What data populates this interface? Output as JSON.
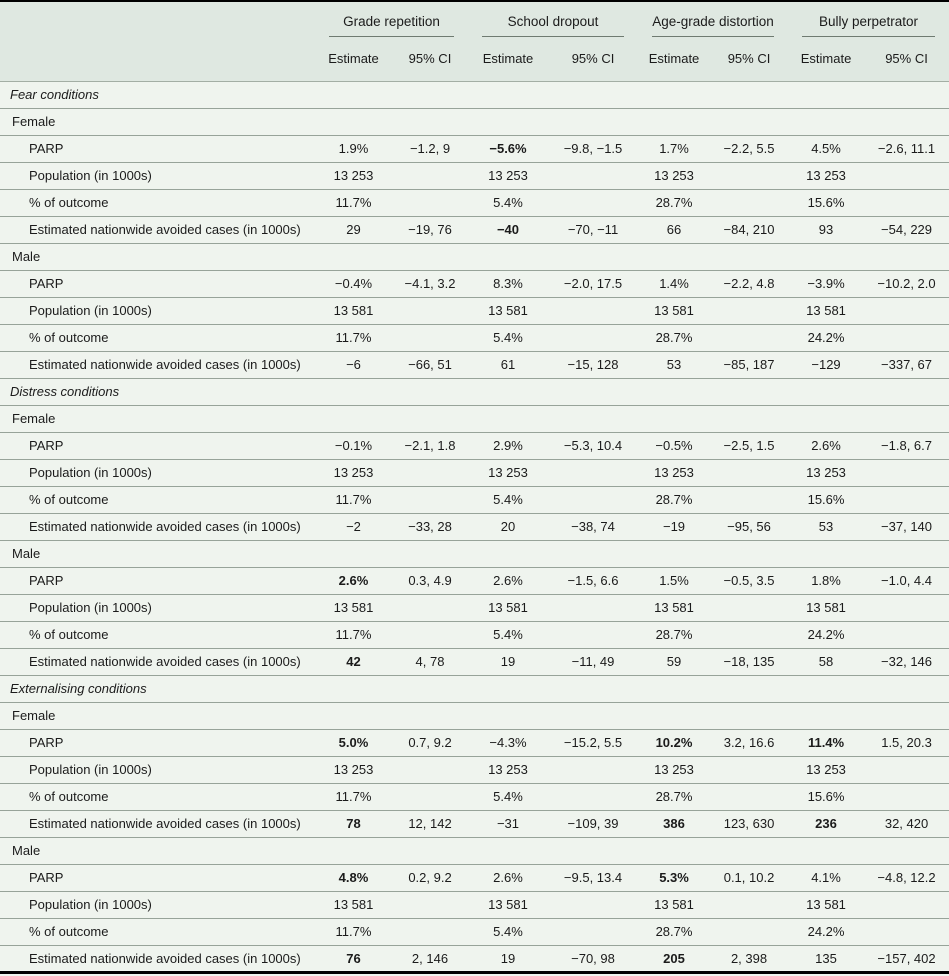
{
  "accent_colors": {
    "header_background": "#dfe8e1",
    "body_background": "#eff4ee",
    "rule_color": "#000000",
    "separator_color": "#97a399"
  },
  "table": {
    "column_groups": [
      {
        "label": "Grade repetition"
      },
      {
        "label": "School dropout"
      },
      {
        "label": "Age-grade distortion"
      },
      {
        "label": "Bully perpetrator"
      }
    ],
    "sub_headers": {
      "estimate": "Estimate",
      "ci": "95% CI"
    },
    "sections": [
      {
        "label": "Fear conditions",
        "groups": [
          {
            "label": "Female",
            "rows": [
              {
                "label": "PARP",
                "cells": [
                  "1.9%",
                  "−1.2, 9",
                  "−5.6%",
                  "−9.8, −1.5",
                  "1.7%",
                  "−2.2, 5.5",
                  "4.5%",
                  "−2.6, 11.1"
                ],
                "bold": [
                  2
                ]
              },
              {
                "label": "Population (in 1000s)",
                "cells": [
                  "13 253",
                  "",
                  "13 253",
                  "",
                  "13 253",
                  "",
                  "13 253",
                  ""
                ],
                "bold": []
              },
              {
                "label": "% of outcome",
                "cells": [
                  "11.7%",
                  "",
                  "5.4%",
                  "",
                  "28.7%",
                  "",
                  "15.6%",
                  ""
                ],
                "bold": []
              },
              {
                "label": "Estimated nationwide avoided cases (in 1000s)",
                "cells": [
                  "29",
                  "−19, 76",
                  "−40",
                  "−70, −11",
                  "66",
                  "−84, 210",
                  "93",
                  "−54, 229"
                ],
                "bold": [
                  2
                ]
              }
            ]
          },
          {
            "label": "Male",
            "rows": [
              {
                "label": "PARP",
                "cells": [
                  "−0.4%",
                  "−4.1, 3.2",
                  "8.3%",
                  "−2.0, 17.5",
                  "1.4%",
                  "−2.2, 4.8",
                  "−3.9%",
                  "−10.2, 2.0"
                ],
                "bold": []
              },
              {
                "label": "Population (in 1000s)",
                "cells": [
                  "13 581",
                  "",
                  "13 581",
                  "",
                  "13 581",
                  "",
                  "13 581",
                  ""
                ],
                "bold": []
              },
              {
                "label": "% of outcome",
                "cells": [
                  "11.7%",
                  "",
                  "5.4%",
                  "",
                  "28.7%",
                  "",
                  "24.2%",
                  ""
                ],
                "bold": []
              },
              {
                "label": "Estimated nationwide avoided cases (in 1000s)",
                "cells": [
                  "−6",
                  "−66, 51",
                  "61",
                  "−15, 128",
                  "53",
                  "−85, 187",
                  "−129",
                  "−337, 67"
                ],
                "bold": []
              }
            ]
          }
        ]
      },
      {
        "label": "Distress conditions",
        "groups": [
          {
            "label": "Female",
            "rows": [
              {
                "label": "PARP",
                "cells": [
                  "−0.1%",
                  "−2.1, 1.8",
                  "2.9%",
                  "−5.3, 10.4",
                  "−0.5%",
                  "−2.5, 1.5",
                  "2.6%",
                  "−1.8, 6.7"
                ],
                "bold": []
              },
              {
                "label": "Population (in 1000s)",
                "cells": [
                  "13 253",
                  "",
                  "13 253",
                  "",
                  "13 253",
                  "",
                  "13 253",
                  ""
                ],
                "bold": []
              },
              {
                "label": "% of outcome",
                "cells": [
                  "11.7%",
                  "",
                  "5.4%",
                  "",
                  "28.7%",
                  "",
                  "15.6%",
                  ""
                ],
                "bold": []
              },
              {
                "label": "Estimated nationwide avoided cases (in 1000s)",
                "cells": [
                  "−2",
                  "−33, 28",
                  "20",
                  "−38, 74",
                  "−19",
                  "−95, 56",
                  "53",
                  "−37, 140"
                ],
                "bold": []
              }
            ]
          },
          {
            "label": "Male",
            "rows": [
              {
                "label": "PARP",
                "cells": [
                  "2.6%",
                  "0.3, 4.9",
                  "2.6%",
                  "−1.5, 6.6",
                  "1.5%",
                  "−0.5, 3.5",
                  "1.8%",
                  "−1.0, 4.4"
                ],
                "bold": [
                  0
                ]
              },
              {
                "label": "Population (in 1000s)",
                "cells": [
                  "13 581",
                  "",
                  "13 581",
                  "",
                  "13 581",
                  "",
                  "13 581",
                  ""
                ],
                "bold": []
              },
              {
                "label": "% of outcome",
                "cells": [
                  "11.7%",
                  "",
                  "5.4%",
                  "",
                  "28.7%",
                  "",
                  "24.2%",
                  ""
                ],
                "bold": []
              },
              {
                "label": "Estimated nationwide avoided cases (in 1000s)",
                "cells": [
                  "42",
                  "4, 78",
                  "19",
                  "−11, 49",
                  "59",
                  "−18, 135",
                  "58",
                  "−32, 146"
                ],
                "bold": [
                  0
                ]
              }
            ]
          }
        ]
      },
      {
        "label": "Externalising conditions",
        "groups": [
          {
            "label": "Female",
            "rows": [
              {
                "label": "PARP",
                "cells": [
                  "5.0%",
                  "0.7, 9.2",
                  "−4.3%",
                  "−15.2, 5.5",
                  "10.2%",
                  "3.2, 16.6",
                  "11.4%",
                  "1.5, 20.3"
                ],
                "bold": [
                  0,
                  4,
                  6
                ]
              },
              {
                "label": "Population (in 1000s)",
                "cells": [
                  "13 253",
                  "",
                  "13 253",
                  "",
                  "13 253",
                  "",
                  "13 253",
                  ""
                ],
                "bold": []
              },
              {
                "label": "% of outcome",
                "cells": [
                  "11.7%",
                  "",
                  "5.4%",
                  "",
                  "28.7%",
                  "",
                  "15.6%",
                  ""
                ],
                "bold": []
              },
              {
                "label": "Estimated nationwide avoided cases (in 1000s)",
                "cells": [
                  "78",
                  "12, 142",
                  "−31",
                  "−109, 39",
                  "386",
                  "123, 630",
                  "236",
                  "32, 420"
                ],
                "bold": [
                  0,
                  4,
                  6
                ]
              }
            ]
          },
          {
            "label": "Male",
            "rows": [
              {
                "label": "PARP",
                "cells": [
                  "4.8%",
                  "0.2, 9.2",
                  "2.6%",
                  "−9.5, 13.4",
                  "5.3%",
                  "0.1, 10.2",
                  "4.1%",
                  "−4.8, 12.2"
                ],
                "bold": [
                  0,
                  4
                ]
              },
              {
                "label": "Population (in 1000s)",
                "cells": [
                  "13 581",
                  "",
                  "13 581",
                  "",
                  "13 581",
                  "",
                  "13 581",
                  ""
                ],
                "bold": []
              },
              {
                "label": "% of outcome",
                "cells": [
                  "11.7%",
                  "",
                  "5.4%",
                  "",
                  "28.7%",
                  "",
                  "24.2%",
                  ""
                ],
                "bold": []
              },
              {
                "label": "Estimated nationwide avoided cases (in 1000s)",
                "cells": [
                  "76",
                  "2, 146",
                  "19",
                  "−70, 98",
                  "205",
                  "2, 398",
                  "135",
                  "−157, 402"
                ],
                "bold": [
                  0,
                  4
                ]
              }
            ]
          }
        ]
      }
    ]
  }
}
